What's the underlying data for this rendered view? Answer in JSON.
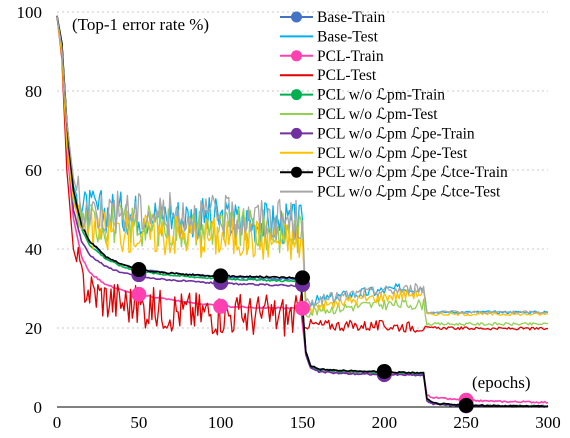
{
  "chart_data": {
    "type": "line",
    "title": "",
    "xlabel": "",
    "ylabel": "",
    "annotations": {
      "metric": "(Top-1 error rate %)",
      "x_unit": "(epochs)"
    },
    "xlim": [
      0,
      300
    ],
    "ylim": [
      0,
      100
    ],
    "x_ticks": [
      "0",
      "50",
      "100",
      "150",
      "200",
      "250",
      "300"
    ],
    "y_ticks": [
      "0",
      "20",
      "40",
      "60",
      "80",
      "100"
    ],
    "grid": "horizontal dotted",
    "legend_position": "top-right",
    "series": [
      {
        "name": "Base-Train",
        "color": "#4472C4",
        "marker": "circle",
        "x": [
          0,
          3,
          6,
          10,
          15,
          20,
          30,
          40,
          50,
          60,
          80,
          100,
          120,
          149,
          150,
          152,
          155,
          160,
          170,
          180,
          200,
          215,
          224,
          226,
          230,
          240,
          250,
          270,
          300
        ],
        "y": [
          99,
          92,
          72,
          55,
          46,
          42,
          38,
          36,
          35,
          34.3,
          33.5,
          33,
          32.7,
          32.3,
          26,
          14,
          10.5,
          9.5,
          9.2,
          9,
          8.8,
          8.6,
          8.5,
          2,
          1,
          0.6,
          0.4,
          0.3,
          0.2
        ]
      },
      {
        "name": "Base-Test",
        "color": "#00B0F0",
        "marker": "",
        "x": [
          0,
          3,
          6,
          10,
          15,
          150,
          152,
          160,
          180,
          200,
          224,
          226,
          300
        ],
        "y": [
          99,
          90,
          70,
          56,
          50,
          46,
          26,
          27,
          28.5,
          29.5,
          30.5,
          24,
          24
        ]
      },
      {
        "name": "PCL-Train",
        "color": "#FF40B0",
        "marker": "circle",
        "x": [
          0,
          3,
          6,
          10,
          15,
          20,
          30,
          40,
          50,
          60,
          80,
          100,
          120,
          149,
          150,
          152,
          155,
          160,
          170,
          180,
          200,
          215,
          224,
          226,
          230,
          240,
          250,
          270,
          300
        ],
        "y": [
          99,
          90,
          66,
          48,
          38,
          34,
          31,
          29.5,
          28.5,
          27.8,
          26.5,
          25.5,
          25.2,
          25,
          21,
          13.5,
          10,
          9.2,
          8.8,
          8.6,
          8.3,
          8.2,
          8,
          3,
          2.4,
          2,
          1.7,
          1.4,
          1.2
        ]
      },
      {
        "name": "PCL-Test",
        "color": "#E00000",
        "marker": "",
        "x": [
          0,
          3,
          6,
          10,
          15,
          20,
          30,
          40,
          50,
          60,
          80,
          100,
          120,
          149,
          150,
          152,
          160,
          180,
          200,
          224,
          226,
          300
        ],
        "y": [
          99,
          88,
          60,
          40,
          32,
          29.5,
          27.5,
          26.5,
          25.5,
          25,
          24.2,
          23.7,
          23.3,
          23,
          21.5,
          21,
          20.8,
          20.6,
          20.5,
          20.3,
          20,
          19.8
        ]
      },
      {
        "name": "PCL w/o ℒpm-Train",
        "color": "#00B050",
        "marker": "circle",
        "x": [
          0,
          3,
          6,
          10,
          15,
          20,
          30,
          40,
          50,
          60,
          80,
          100,
          120,
          149,
          150,
          152,
          155,
          160,
          170,
          180,
          200,
          215,
          224,
          226,
          230,
          240,
          250,
          270,
          300
        ],
        "y": [
          99,
          92,
          71,
          54,
          45,
          41,
          37.5,
          35.5,
          34.5,
          33.8,
          33,
          32.5,
          32.2,
          31.8,
          25.5,
          13.8,
          10.3,
          9.4,
          9.1,
          8.9,
          8.7,
          8.5,
          8.4,
          1.8,
          0.9,
          0.5,
          0.35,
          0.25,
          0.2
        ]
      },
      {
        "name": "PCL w/o ℒpm-Test",
        "color": "#92D050",
        "marker": "",
        "x": [
          0,
          3,
          6,
          10,
          15,
          150,
          152,
          160,
          180,
          200,
          224,
          226,
          300
        ],
        "y": [
          99,
          90,
          68,
          54,
          47,
          44,
          24,
          24.5,
          25.5,
          26,
          26,
          21,
          21
        ]
      },
      {
        "name": "PCL w/o ℒpm ℒpe-Train",
        "color": "#7030A0",
        "marker": "circle",
        "x": [
          0,
          3,
          6,
          10,
          15,
          20,
          30,
          40,
          50,
          60,
          80,
          100,
          120,
          149,
          150,
          152,
          155,
          160,
          170,
          180,
          200,
          215,
          224,
          226,
          230,
          240,
          250,
          270,
          300
        ],
        "y": [
          99,
          91,
          68,
          50,
          42,
          38.5,
          35.5,
          34,
          33,
          32.5,
          31.8,
          31.3,
          31,
          30.7,
          24.5,
          13.2,
          9.8,
          8.9,
          8.6,
          8.4,
          8.2,
          8.1,
          8,
          1.5,
          0.8,
          0.45,
          0.3,
          0.2,
          0.2
        ]
      },
      {
        "name": "PCL w/o ℒpm ℒpe-Test",
        "color": "#FFC000",
        "marker": "",
        "x": [
          0,
          3,
          6,
          10,
          15,
          150,
          152,
          160,
          180,
          200,
          224,
          226,
          300
        ],
        "y": [
          99,
          89,
          66,
          52,
          45,
          42,
          25,
          25.5,
          27,
          28,
          29,
          23.5,
          23.5
        ]
      },
      {
        "name": "PCL w/o ℒpm ℒpe ℒtce-Train",
        "color": "#000000",
        "marker": "circle",
        "x": [
          0,
          3,
          6,
          10,
          15,
          20,
          30,
          40,
          50,
          60,
          80,
          100,
          120,
          149,
          150,
          152,
          155,
          160,
          170,
          180,
          200,
          215,
          224,
          226,
          230,
          240,
          250,
          270,
          300
        ],
        "y": [
          99,
          92,
          72,
          55,
          46,
          42,
          38,
          36,
          34.8,
          34.2,
          33.5,
          33.2,
          33,
          32.7,
          26,
          14,
          10.5,
          9.6,
          9.3,
          9.1,
          8.9,
          8.7,
          8.6,
          2,
          1,
          0.6,
          0.4,
          0.3,
          0.2
        ]
      },
      {
        "name": "PCL w/o ℒpm ℒpe ℒtce-Test",
        "color": "#A6A6A6",
        "marker": "",
        "x": [
          0,
          3,
          6,
          10,
          15,
          150,
          152,
          160,
          180,
          200,
          224,
          226,
          300
        ],
        "y": [
          99,
          91,
          72,
          58,
          50,
          47,
          26,
          27,
          28.5,
          29.5,
          30,
          24,
          24
        ]
      }
    ],
    "markers": [
      {
        "series": "PCL-Train",
        "color": "#FF40B0",
        "x": [
          50,
          100,
          150,
          250
        ],
        "y": [
          28.5,
          25.5,
          25,
          1.7
        ]
      },
      {
        "series": "PCL w/o ℒpm ℒpe-Train",
        "color": "#7030A0",
        "x": [
          50,
          100,
          150,
          200,
          250
        ],
        "y": [
          33.5,
          31.5,
          31,
          8.2,
          0.3
        ]
      },
      {
        "series": "PCL w/o ℒpm ℒpe ℒtce-Train",
        "color": "#000000",
        "x": [
          50,
          100,
          150,
          200,
          250
        ],
        "y": [
          34.8,
          33.2,
          32.7,
          9,
          0.4
        ]
      }
    ]
  }
}
